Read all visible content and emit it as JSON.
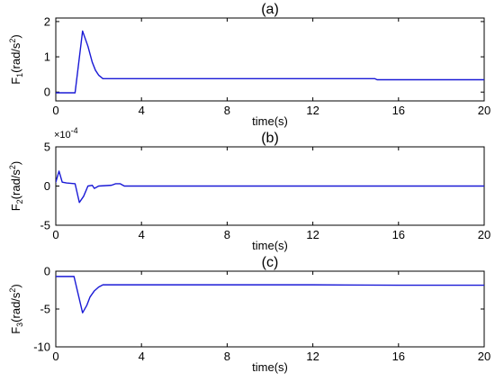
{
  "chart_data": [
    {
      "type": "line",
      "title": "(a)",
      "xlabel": "time(s)",
      "ylabel_main": "F",
      "ylabel_sub": "1",
      "ylabel_rest": "(rad/s",
      "ylabel_sup": "2",
      "ylabel_end": ")",
      "xlim": [
        0,
        20
      ],
      "ylim": [
        -0.25,
        2.1
      ],
      "xticks": [
        0,
        4,
        8,
        12,
        16,
        20
      ],
      "yticks": [
        0,
        1,
        2
      ],
      "multiplier": "",
      "color": "#1a1ad6",
      "x": [
        -0.1,
        0.9,
        1.25,
        1.5,
        1.7,
        1.85,
        2.0,
        2.2,
        4,
        8,
        12,
        14.9,
        15.0,
        20
      ],
      "y": [
        -0.02,
        -0.02,
        1.73,
        1.3,
        0.85,
        0.62,
        0.48,
        0.38,
        0.38,
        0.38,
        0.38,
        0.38,
        0.35,
        0.35
      ]
    },
    {
      "type": "line",
      "title": "(b)",
      "xlabel": "time(s)",
      "ylabel_main": "F",
      "ylabel_sub": "2",
      "ylabel_rest": "(rad/s",
      "ylabel_sup": "2",
      "ylabel_end": ")",
      "xlim": [
        0,
        20
      ],
      "ylim": [
        -5,
        5
      ],
      "xticks": [
        0,
        4,
        8,
        12,
        16,
        20
      ],
      "yticks": [
        -5,
        0,
        5
      ],
      "multiplier": "×10",
      "multiplier_exp": "-4",
      "color": "#1a1ad6",
      "x": [
        -0.1,
        0.0,
        0.15,
        0.3,
        0.5,
        0.9,
        1.1,
        1.3,
        1.5,
        1.7,
        1.8,
        2.0,
        2.6,
        2.8,
        3.0,
        3.2,
        4,
        20
      ],
      "y": [
        0.2,
        0.5,
        1.9,
        0.5,
        0.4,
        0.3,
        -2.1,
        -1.3,
        0.0,
        0.1,
        -0.3,
        0.0,
        0.1,
        0.3,
        0.3,
        0.0,
        0.0,
        0.0
      ]
    },
    {
      "type": "line",
      "title": "(c)",
      "xlabel": "time(s)",
      "ylabel_main": "F",
      "ylabel_sub": "3",
      "ylabel_rest": "(rad/s",
      "ylabel_sup": "2",
      "ylabel_end": ")",
      "xlim": [
        0,
        20
      ],
      "ylim": [
        -10,
        0
      ],
      "xticks": [
        0,
        4,
        8,
        12,
        16,
        20
      ],
      "yticks": [
        -10,
        -5,
        0
      ],
      "multiplier": "",
      "color": "#1a1ad6",
      "x": [
        -0.1,
        0.85,
        1.25,
        1.45,
        1.6,
        1.8,
        2.0,
        2.2,
        3,
        4,
        8,
        12,
        16,
        20
      ],
      "y": [
        -0.7,
        -0.7,
        -5.5,
        -4.5,
        -3.4,
        -2.6,
        -2.1,
        -1.8,
        -1.8,
        -1.8,
        -1.8,
        -1.8,
        -1.85,
        -1.85
      ]
    }
  ]
}
